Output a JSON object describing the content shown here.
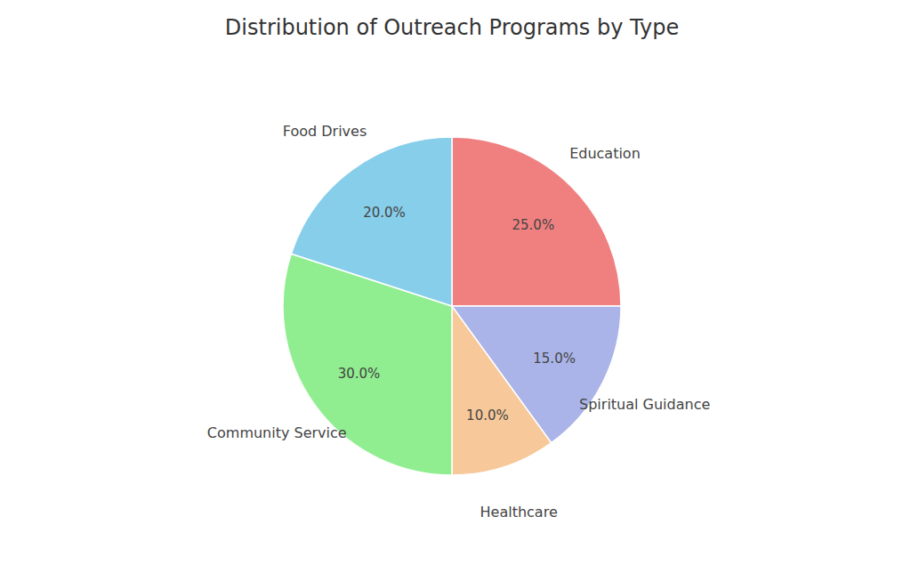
{
  "chart_data": {
    "type": "pie",
    "title": "Distribution of Outreach Programs by Type",
    "categories": [
      "Education",
      "Spiritual Guidance",
      "Healthcare",
      "Community Service",
      "Food Drives"
    ],
    "values": [
      25.0,
      15.0,
      10.0,
      30.0,
      20.0
    ],
    "value_labels": [
      "25.0%",
      "15.0%",
      "10.0%",
      "30.0%",
      "20.0%"
    ],
    "colors": [
      "#f08080",
      "#aab4e8",
      "#f7c899",
      "#90ee90",
      "#87ceeb"
    ],
    "data_labels": true
  }
}
